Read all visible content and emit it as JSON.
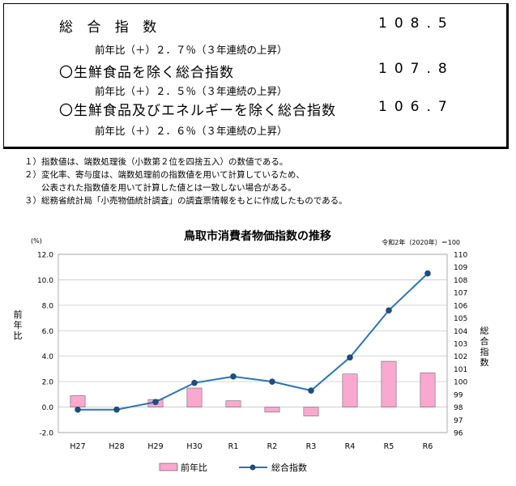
{
  "summary": {
    "rows": [
      {
        "label": "総 合 指 数",
        "value": "108.5",
        "sub": "前年比（＋）２．７％（３年連続の上昇）"
      },
      {
        "label": "〇生鮮食品を除く総合指数",
        "value": "107.8",
        "sub": "前年比（＋）２．５％（３年連続の上昇）"
      },
      {
        "label": "〇生鮮食品及びエネルギーを除く総合指数",
        "value": "106.7",
        "sub": "前年比（＋）２．６％（３年連続の上昇）"
      }
    ]
  },
  "notes": [
    "１）指数値は、端数処理後（小数第２位を四捨五入）の数値である。",
    "２）変化率、寄与度は、端数処理前の指数値を用いて計算しているため、",
    "　　公表された指数値を用いて計算した値とは一致しない場合がある。",
    "３）総務省統計局「小売物価統計調査」の調査票情報をもとに作成したものである。"
  ],
  "chart_data": {
    "type": "bar+line",
    "title": "鳥取市消費者物価指数の推移",
    "base_note": "令和2年（2020年）＝100",
    "left_unit": "(%)",
    "left_label": "前年比",
    "right_label": "総合指数",
    "categories": [
      "H27",
      "H28",
      "H29",
      "H30",
      "R1",
      "R2",
      "R3",
      "R4",
      "R5",
      "R6"
    ],
    "left_axis": {
      "min": -2.0,
      "max": 12.0,
      "step": 2.0,
      "ticks": [
        "-2.0",
        "0.0",
        "2.0",
        "4.0",
        "6.0",
        "8.0",
        "10.0",
        "12.0"
      ]
    },
    "right_axis": {
      "min": 96,
      "max": 110,
      "step": 1
    },
    "series": [
      {
        "name": "前年比",
        "kind": "bar",
        "axis": "left",
        "color": "#f9a8cf",
        "values": [
          0.9,
          0.0,
          0.6,
          1.5,
          0.5,
          -0.4,
          -0.7,
          2.6,
          3.6,
          2.7
        ]
      },
      {
        "name": "総合指数",
        "kind": "line",
        "axis": "right",
        "color": "#2e74b5",
        "values": [
          97.8,
          97.8,
          98.4,
          99.9,
          100.4,
          100.0,
          99.3,
          101.9,
          105.6,
          108.5
        ]
      }
    ],
    "grid": "horizontal",
    "legend": "bottom-center"
  }
}
